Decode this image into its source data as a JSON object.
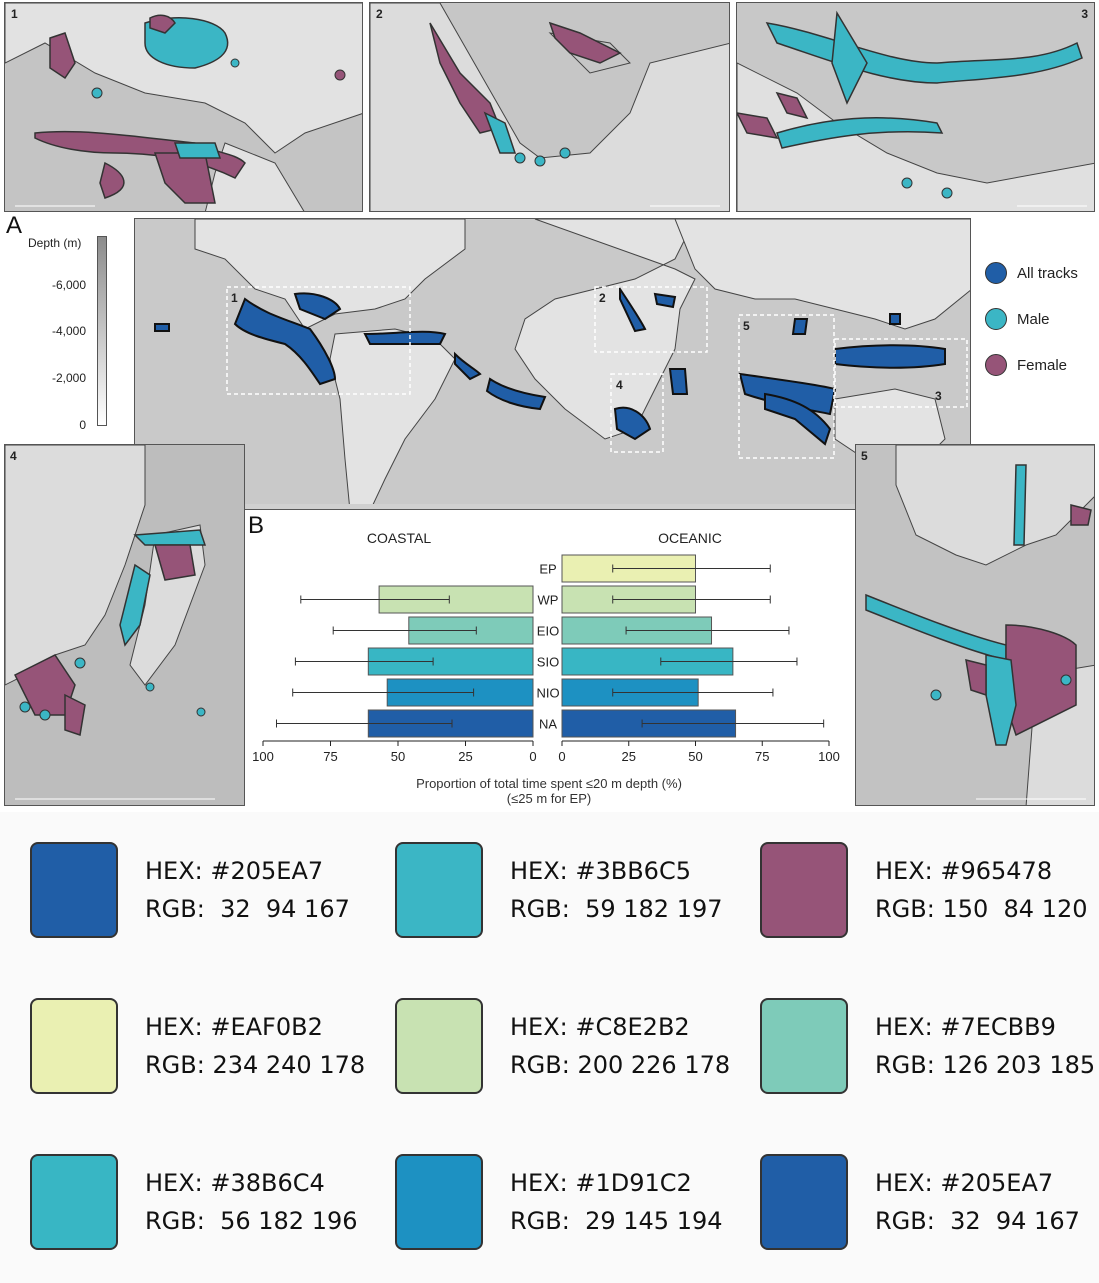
{
  "panels": {
    "main_label": "A",
    "chart_label": "B",
    "insets": [
      "1",
      "2",
      "3",
      "4",
      "5"
    ],
    "box_labels": [
      "1",
      "2",
      "3",
      "4",
      "5"
    ]
  },
  "depth_scale": {
    "title": "Depth (m)",
    "ticks": [
      "-6,000",
      "-4,000",
      "-2,000",
      "0"
    ]
  },
  "legend": [
    {
      "label": "All tracks",
      "color": "#205EA7"
    },
    {
      "label": "Male",
      "color": "#3BB6C5"
    },
    {
      "label": "Female",
      "color": "#965478"
    }
  ],
  "chart_data": {
    "type": "bar",
    "orientation": "horizontal-back-to-back",
    "categories": [
      "EP",
      "WP",
      "EIO",
      "SIO",
      "NIO",
      "NA"
    ],
    "colors": [
      "#EAF0B2",
      "#C8E2B2",
      "#7ECBB9",
      "#38B6C4",
      "#1D91C2",
      "#205EA7"
    ],
    "series": [
      {
        "name": "COASTAL",
        "values": [
          null,
          57,
          46,
          61,
          54,
          61
        ],
        "error_low": [
          null,
          31,
          21,
          37,
          22,
          30
        ],
        "error_high": [
          null,
          86,
          74,
          88,
          89,
          95
        ]
      },
      {
        "name": "OCEANIC",
        "values": [
          50,
          50,
          56,
          64,
          51,
          65
        ],
        "error_low": [
          19,
          19,
          24,
          37,
          19,
          30
        ],
        "error_high": [
          78,
          78,
          85,
          88,
          79,
          98
        ]
      }
    ],
    "xlim": [
      0,
      100
    ],
    "ticks": [
      "100",
      "75",
      "50",
      "25",
      "0",
      "0",
      "25",
      "50",
      "75",
      "100"
    ],
    "xlabel": "Proportion of total time spent ≤20 m depth (%)",
    "xlabel_note": "(≤25 m for EP)",
    "left_title": "COASTAL",
    "right_title": "OCEANIC"
  },
  "swatches": [
    {
      "hex": "HEX: #205EA7",
      "rgb": "RGB:  32  94 167",
      "color": "#205EA7"
    },
    {
      "hex": "HEX: #3BB6C5",
      "rgb": "RGB:  59 182 197",
      "color": "#3BB6C5"
    },
    {
      "hex": "HEX: #965478",
      "rgb": "RGB: 150  84 120",
      "color": "#965478"
    },
    {
      "hex": "HEX: #EAF0B2",
      "rgb": "RGB: 234 240 178",
      "color": "#EAF0B2"
    },
    {
      "hex": "HEX: #C8E2B2",
      "rgb": "RGB: 200 226 178",
      "color": "#C8E2B2"
    },
    {
      "hex": "HEX: #7ECBB9",
      "rgb": "RGB: 126 203 185",
      "color": "#7ECBB9"
    },
    {
      "hex": "HEX: #38B6C4",
      "rgb": "RGB:  56 182 196",
      "color": "#38B6C4"
    },
    {
      "hex": "HEX: #1D91C2",
      "rgb": "RGB:  29 145 194",
      "color": "#1D91C2"
    },
    {
      "hex": "HEX: #205EA7",
      "rgb": "RGB:  32  94 167",
      "color": "#205EA7"
    }
  ]
}
